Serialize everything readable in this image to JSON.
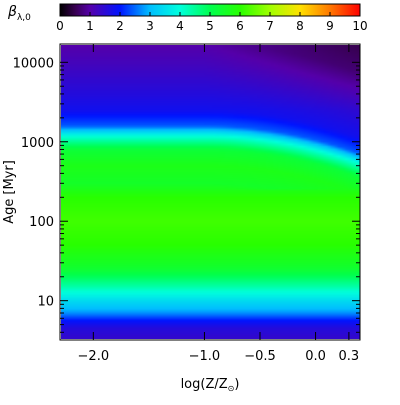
{
  "chart_data": {
    "type": "heatmap",
    "colorbar": {
      "label_symbol": "β",
      "label_subscript": "λ,0",
      "range": [
        0,
        10
      ],
      "ticks": [
        "0",
        "1",
        "2",
        "3",
        "4",
        "5",
        "6",
        "7",
        "8",
        "9",
        "10"
      ],
      "colormap": "rainbow (black-purple-blue-cyan-green-yellow-red)"
    },
    "xlabel": "log(Z/Z",
    "xlabel_sun": "⊙",
    "xlabel_close": ")",
    "ylabel": "Age",
    "ylabel_unit": "[Myr]",
    "x_axis": {
      "range": [
        -2.3,
        0.4
      ],
      "ticks": [
        {
          "value": -2.0,
          "label": "−2.0"
        },
        {
          "value": -1.0,
          "label": "−1.0"
        },
        {
          "value": -0.5,
          "label": "−0.5"
        },
        {
          "value": 0.0,
          "label": "0.0"
        },
        {
          "value": 0.3,
          "label": "0.3"
        }
      ]
    },
    "y_axis": {
      "scale": "log",
      "range": [
        3.2,
        17000
      ],
      "ticks": [
        {
          "value": 10,
          "label": "10"
        },
        {
          "value": 100,
          "label": "100"
        },
        {
          "value": 1000,
          "label": "1000"
        },
        {
          "value": 10000,
          "label": "10000"
        }
      ]
    },
    "age_profile": [
      {
        "age": 3.2,
        "beta": 1.4
      },
      {
        "age": 4.5,
        "beta": 1.6
      },
      {
        "age": 5.5,
        "beta": 2.0
      },
      {
        "age": 7,
        "beta": 2.8
      },
      {
        "age": 10,
        "beta": 3.5
      },
      {
        "age": 15,
        "beta": 4.4
      },
      {
        "age": 25,
        "beta": 5.4
      },
      {
        "age": 50,
        "beta": 6.0
      },
      {
        "age": 100,
        "beta": 6.2
      },
      {
        "age": 200,
        "beta": 6.0
      },
      {
        "age": 300,
        "beta": 5.5
      },
      {
        "age": 500,
        "beta": 5.7
      },
      {
        "age": 800,
        "beta": 5.3
      },
      {
        "age": 1200,
        "beta": 4.0
      },
      {
        "age": 1600,
        "beta": 2.4
      },
      {
        "age": 2500,
        "beta": 1.8
      },
      {
        "age": 5000,
        "beta": 1.5
      },
      {
        "age": 10000,
        "beta": 1.2
      },
      {
        "age": 17000,
        "beta": 1.0
      }
    ],
    "metallicity_trend": "at high Z the transition near 1-2 Gyr shifts to younger ages (cyan region near 500 Myr at log Z ~ 0) and the oldest ages darken toward black at high Z"
  }
}
